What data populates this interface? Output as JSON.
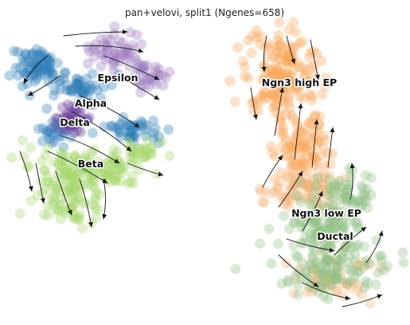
{
  "chart_data": {
    "type": "scatter",
    "title": "pan+velovi, split1 (Ngenes=658)",
    "clusters": [
      {
        "name": "Epsilon",
        "color": "#9b7bbd"
      },
      {
        "name": "Alpha",
        "color": "#2f7fb8"
      },
      {
        "name": "Delta",
        "color": "#6a3d9a"
      },
      {
        "name": "Beta",
        "color": "#a6d86e"
      },
      {
        "name": "Ngn3 high EP",
        "color": "#f9a65a"
      },
      {
        "name": "Ngn3 low EP",
        "color": "#f4b47a"
      },
      {
        "name": "Ductal",
        "color": "#8fbf84"
      }
    ],
    "grid": false,
    "axes": false
  }
}
